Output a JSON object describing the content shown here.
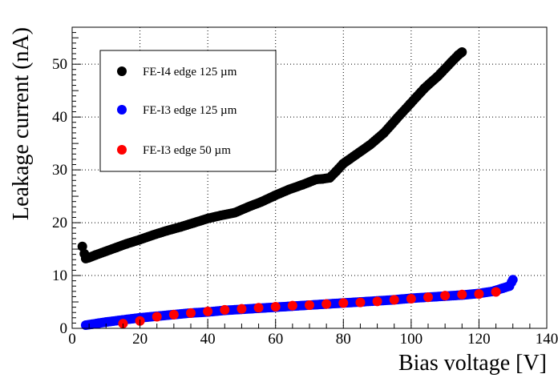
{
  "chart_data": {
    "type": "scatter",
    "title": "",
    "xlabel": "Bias voltage [V]",
    "ylabel": "Leakage current (nA)",
    "xlim": [
      0,
      140
    ],
    "ylim": [
      0,
      57
    ],
    "x_ticks": [
      0,
      20,
      40,
      60,
      80,
      100,
      120,
      140
    ],
    "y_ticks": [
      0,
      10,
      20,
      30,
      40,
      50
    ],
    "grid": true,
    "legend_position": "top-left",
    "series": [
      {
        "name": "FE-I4 edge 125 µm",
        "color": "#000000",
        "x": [
          3,
          4,
          5,
          7,
          10,
          13,
          16,
          20,
          24,
          28,
          32,
          36,
          40,
          44,
          48,
          52,
          56,
          60,
          64,
          68,
          70,
          72,
          74,
          76,
          78,
          80,
          84,
          88,
          92,
          96,
          100,
          104,
          108,
          112,
          114,
          115
        ],
        "y": [
          15.5,
          13.2,
          13.4,
          13.9,
          14.6,
          15.3,
          16.0,
          16.8,
          17.7,
          18.5,
          19.2,
          20.0,
          20.8,
          21.4,
          21.9,
          23.0,
          24.0,
          25.2,
          26.3,
          27.2,
          27.7,
          28.2,
          28.3,
          28.5,
          29.8,
          31.2,
          33.0,
          34.8,
          37.0,
          39.9,
          42.7,
          45.5,
          47.8,
          50.5,
          51.8,
          52.3
        ]
      },
      {
        "name": "FE-I3 edge 125 µm",
        "color": "#0000ff",
        "x": [
          4,
          6,
          8,
          10,
          15,
          20,
          25,
          30,
          35,
          40,
          45,
          50,
          55,
          60,
          65,
          70,
          75,
          80,
          85,
          90,
          95,
          100,
          105,
          110,
          115,
          120,
          124,
          127,
          129,
          130
        ],
        "y": [
          0.6,
          0.8,
          1.0,
          1.2,
          1.6,
          2.0,
          2.3,
          2.6,
          2.9,
          3.1,
          3.4,
          3.6,
          3.8,
          4.0,
          4.2,
          4.4,
          4.6,
          4.8,
          5.0,
          5.2,
          5.4,
          5.7,
          5.9,
          6.1,
          6.3,
          6.6,
          7.0,
          7.6,
          8.0,
          9.2
        ]
      },
      {
        "name": "FE-I3 edge 50 µm",
        "color": "#ff0000",
        "x": [
          15,
          20,
          25,
          30,
          35,
          40,
          45,
          50,
          55,
          60,
          65,
          70,
          75,
          80,
          85,
          90,
          95,
          100,
          105,
          110,
          115,
          120,
          125
        ],
        "y": [
          0.9,
          1.4,
          2.2,
          2.6,
          2.9,
          3.2,
          3.5,
          3.7,
          3.9,
          4.1,
          4.3,
          4.4,
          4.6,
          4.8,
          4.9,
          5.1,
          5.4,
          5.6,
          5.9,
          6.2,
          6.4,
          6.5,
          6.9
        ]
      }
    ]
  }
}
